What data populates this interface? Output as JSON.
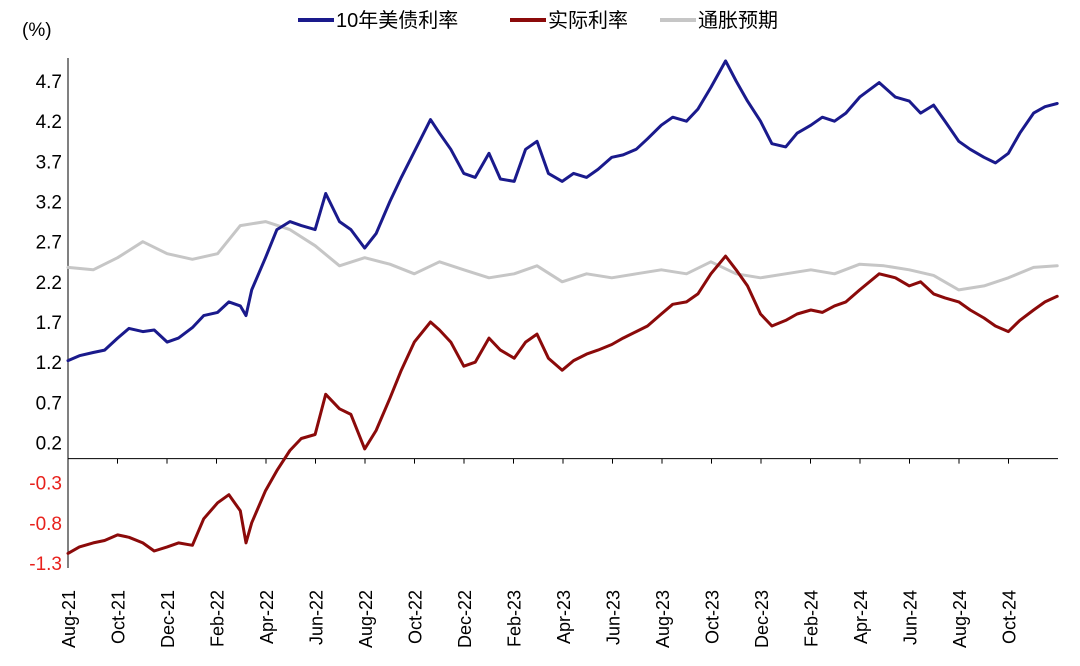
{
  "chart_data": {
    "type": "line",
    "y_unit_label": "(%)",
    "ylim": [
      -1.3,
      5.0
    ],
    "y_ticks": [
      4.7,
      4.2,
      3.7,
      3.2,
      2.7,
      2.2,
      1.7,
      1.2,
      0.7,
      0.2,
      -0.3,
      -0.8,
      -1.3
    ],
    "y_tick_labels": [
      "4.7",
      "4.2",
      "3.7",
      "3.2",
      "2.7",
      "2.2",
      "1.7",
      "1.2",
      "0.7",
      "0.2",
      "-0.3",
      "-0.8",
      "-1.3"
    ],
    "negative_label_color": "#e8211c",
    "x_range": [
      "2021-08",
      "2024-12"
    ],
    "x_ticks": [
      "Aug-21",
      "Oct-21",
      "Dec-21",
      "Feb-22",
      "Apr-22",
      "Jun-22",
      "Aug-22",
      "Oct-22",
      "Dec-22",
      "Feb-23",
      "Apr-23",
      "Jun-23",
      "Aug-23",
      "Oct-23",
      "Dec-23",
      "Feb-24",
      "Apr-24",
      "Jun-24",
      "Aug-24",
      "Oct-24"
    ],
    "legend_position": "top",
    "grid": false,
    "series": [
      {
        "name": "10年美债利率",
        "color": "#1a1a8c",
        "x": [
          "2021-08-01",
          "2021-08-15",
          "2021-09-01",
          "2021-09-15",
          "2021-10-01",
          "2021-10-15",
          "2021-11-01",
          "2021-11-15",
          "2021-12-01",
          "2021-12-15",
          "2022-01-01",
          "2022-01-15",
          "2022-02-01",
          "2022-02-15",
          "2022-03-01",
          "2022-03-08",
          "2022-03-15",
          "2022-04-01",
          "2022-04-15",
          "2022-05-01",
          "2022-05-15",
          "2022-06-01",
          "2022-06-14",
          "2022-07-01",
          "2022-07-15",
          "2022-08-01",
          "2022-08-15",
          "2022-09-01",
          "2022-09-15",
          "2022-10-01",
          "2022-10-21",
          "2022-11-01",
          "2022-11-15",
          "2022-12-01",
          "2022-12-15",
          "2023-01-01",
          "2023-01-15",
          "2023-02-01",
          "2023-02-15",
          "2023-03-01",
          "2023-03-15",
          "2023-04-01",
          "2023-04-15",
          "2023-05-01",
          "2023-05-15",
          "2023-06-01",
          "2023-06-15",
          "2023-07-01",
          "2023-07-15",
          "2023-08-01",
          "2023-08-15",
          "2023-09-01",
          "2023-09-15",
          "2023-10-01",
          "2023-10-19",
          "2023-11-01",
          "2023-11-15",
          "2023-12-01",
          "2023-12-15",
          "2024-01-01",
          "2024-01-15",
          "2024-02-01",
          "2024-02-15",
          "2024-03-01",
          "2024-03-15",
          "2024-04-01",
          "2024-04-25",
          "2024-05-15",
          "2024-06-01",
          "2024-06-15",
          "2024-07-01",
          "2024-07-15",
          "2024-08-01",
          "2024-08-15",
          "2024-09-01",
          "2024-09-15",
          "2024-10-01",
          "2024-10-15",
          "2024-11-01",
          "2024-11-15",
          "2024-11-30"
        ],
        "values": [
          1.22,
          1.28,
          1.32,
          1.35,
          1.5,
          1.62,
          1.58,
          1.6,
          1.45,
          1.5,
          1.63,
          1.78,
          1.82,
          1.95,
          1.9,
          1.78,
          2.1,
          2.5,
          2.85,
          2.95,
          2.9,
          2.85,
          3.3,
          2.95,
          2.85,
          2.62,
          2.8,
          3.2,
          3.5,
          3.82,
          4.22,
          4.05,
          3.85,
          3.55,
          3.5,
          3.8,
          3.48,
          3.45,
          3.85,
          3.95,
          3.55,
          3.45,
          3.55,
          3.5,
          3.6,
          3.75,
          3.78,
          3.85,
          3.98,
          4.15,
          4.25,
          4.2,
          4.35,
          4.62,
          4.95,
          4.7,
          4.45,
          4.2,
          3.92,
          3.88,
          4.05,
          4.15,
          4.25,
          4.2,
          4.3,
          4.5,
          4.68,
          4.5,
          4.45,
          4.3,
          4.4,
          4.2,
          3.95,
          3.85,
          3.75,
          3.68,
          3.8,
          4.05,
          4.3,
          4.38,
          4.42
        ]
      },
      {
        "name": "实际利率",
        "color": "#8b0a0a",
        "x": [
          "2021-08-01",
          "2021-08-15",
          "2021-09-01",
          "2021-09-15",
          "2021-10-01",
          "2021-10-15",
          "2021-11-01",
          "2021-11-15",
          "2021-12-01",
          "2021-12-15",
          "2022-01-01",
          "2022-01-15",
          "2022-02-01",
          "2022-02-15",
          "2022-03-01",
          "2022-03-08",
          "2022-03-15",
          "2022-04-01",
          "2022-04-15",
          "2022-05-01",
          "2022-05-15",
          "2022-06-01",
          "2022-06-14",
          "2022-07-01",
          "2022-07-15",
          "2022-08-01",
          "2022-08-15",
          "2022-09-01",
          "2022-09-15",
          "2022-10-01",
          "2022-10-21",
          "2022-11-01",
          "2022-11-15",
          "2022-12-01",
          "2022-12-15",
          "2023-01-01",
          "2023-01-15",
          "2023-02-01",
          "2023-02-15",
          "2023-03-01",
          "2023-03-15",
          "2023-04-01",
          "2023-04-15",
          "2023-05-01",
          "2023-05-15",
          "2023-06-01",
          "2023-06-15",
          "2023-07-01",
          "2023-07-15",
          "2023-08-01",
          "2023-08-15",
          "2023-09-01",
          "2023-09-15",
          "2023-10-01",
          "2023-10-19",
          "2023-11-01",
          "2023-11-15",
          "2023-12-01",
          "2023-12-15",
          "2024-01-01",
          "2024-01-15",
          "2024-02-01",
          "2024-02-15",
          "2024-03-01",
          "2024-03-15",
          "2024-04-01",
          "2024-04-25",
          "2024-05-15",
          "2024-06-01",
          "2024-06-15",
          "2024-07-01",
          "2024-07-15",
          "2024-08-01",
          "2024-08-15",
          "2024-09-01",
          "2024-09-15",
          "2024-10-01",
          "2024-10-15",
          "2024-11-01",
          "2024-11-15",
          "2024-11-30"
        ],
        "values": [
          -1.18,
          -1.1,
          -1.05,
          -1.02,
          -0.95,
          -0.98,
          -1.05,
          -1.15,
          -1.1,
          -1.05,
          -1.08,
          -0.75,
          -0.55,
          -0.45,
          -0.65,
          -1.05,
          -0.8,
          -0.4,
          -0.15,
          0.1,
          0.25,
          0.3,
          0.8,
          0.62,
          0.55,
          0.12,
          0.35,
          0.75,
          1.1,
          1.45,
          1.7,
          1.6,
          1.45,
          1.15,
          1.2,
          1.5,
          1.35,
          1.25,
          1.45,
          1.55,
          1.25,
          1.1,
          1.22,
          1.3,
          1.35,
          1.42,
          1.5,
          1.58,
          1.65,
          1.8,
          1.92,
          1.95,
          2.05,
          2.3,
          2.52,
          2.35,
          2.15,
          1.8,
          1.65,
          1.72,
          1.8,
          1.85,
          1.82,
          1.9,
          1.95,
          2.1,
          2.3,
          2.25,
          2.15,
          2.2,
          2.05,
          2.0,
          1.95,
          1.85,
          1.75,
          1.65,
          1.58,
          1.72,
          1.85,
          1.95,
          2.02
        ]
      },
      {
        "name": "通胀预期",
        "color": "#c6c6c6",
        "x": [
          "2021-08-01",
          "2021-09-01",
          "2021-10-01",
          "2021-11-01",
          "2021-12-01",
          "2022-01-01",
          "2022-02-01",
          "2022-03-01",
          "2022-04-01",
          "2022-05-01",
          "2022-06-01",
          "2022-07-01",
          "2022-08-01",
          "2022-09-01",
          "2022-10-01",
          "2022-11-01",
          "2022-12-01",
          "2023-01-01",
          "2023-02-01",
          "2023-03-01",
          "2023-04-01",
          "2023-05-01",
          "2023-06-01",
          "2023-07-01",
          "2023-08-01",
          "2023-09-01",
          "2023-10-01",
          "2023-11-01",
          "2023-12-01",
          "2024-01-01",
          "2024-02-01",
          "2024-03-01",
          "2024-04-01",
          "2024-05-01",
          "2024-06-01",
          "2024-07-01",
          "2024-08-01",
          "2024-09-01",
          "2024-10-01",
          "2024-11-01",
          "2024-11-30"
        ],
        "values": [
          2.38,
          2.35,
          2.5,
          2.7,
          2.55,
          2.48,
          2.55,
          2.9,
          2.95,
          2.85,
          2.65,
          2.4,
          2.5,
          2.42,
          2.3,
          2.45,
          2.35,
          2.25,
          2.3,
          2.4,
          2.2,
          2.3,
          2.25,
          2.3,
          2.35,
          2.3,
          2.45,
          2.3,
          2.25,
          2.3,
          2.35,
          2.3,
          2.42,
          2.4,
          2.35,
          2.28,
          2.1,
          2.15,
          2.25,
          2.38,
          2.4
        ]
      }
    ]
  }
}
